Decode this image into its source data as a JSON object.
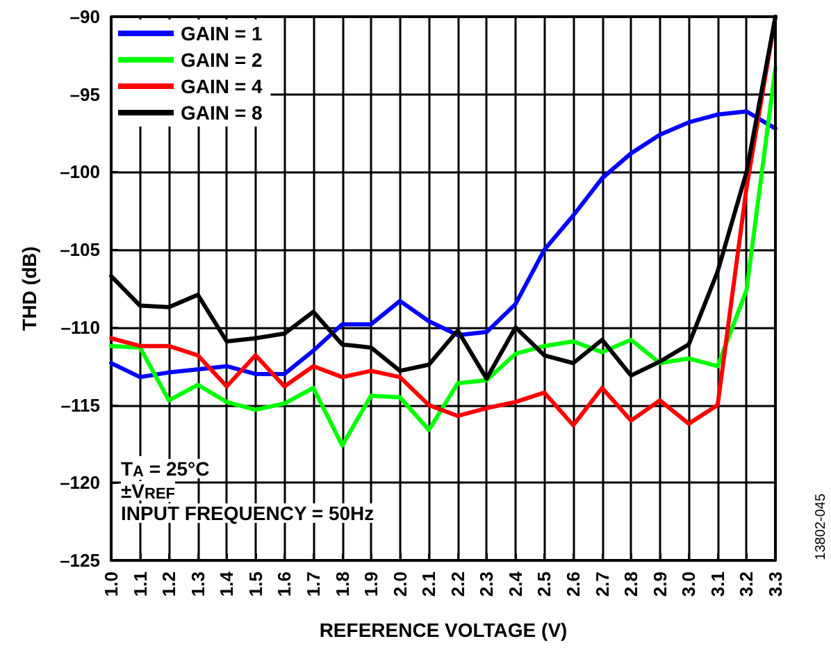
{
  "chart_data": {
    "type": "line",
    "xlabel": "REFERENCE VOLTAGE (V)",
    "ylabel": "THD (dB)",
    "x": [
      1.0,
      1.1,
      1.2,
      1.3,
      1.4,
      1.5,
      1.6,
      1.7,
      1.8,
      1.9,
      2.0,
      2.1,
      2.2,
      2.3,
      2.4,
      2.5,
      2.6,
      2.7,
      2.8,
      2.9,
      3.0,
      3.1,
      3.2,
      3.3
    ],
    "series": [
      {
        "name": "GAIN = 1",
        "color": "#0000ff",
        "values": [
          -112.3,
          -113.2,
          -112.9,
          -112.7,
          -112.5,
          -113.0,
          -113.0,
          -111.5,
          -109.8,
          -109.8,
          -108.3,
          -109.6,
          -110.5,
          -110.3,
          -108.5,
          -105.0,
          -102.8,
          -100.4,
          -98.8,
          -97.6,
          -96.8,
          -96.3,
          -96.1,
          -97.2
        ]
      },
      {
        "name": "GAIN = 2",
        "color": "#00ff00",
        "values": [
          -111.2,
          -111.3,
          -114.7,
          -113.7,
          -114.8,
          -115.3,
          -114.9,
          -113.9,
          -117.6,
          -114.4,
          -114.5,
          -116.6,
          -113.6,
          -113.4,
          -111.7,
          -111.2,
          -110.9,
          -111.6,
          -110.8,
          -112.3,
          -112.0,
          -112.5,
          -107.6,
          -93.3
        ]
      },
      {
        "name": "GAIN = 4",
        "color": "#ff0000",
        "values": [
          -110.7,
          -111.2,
          -111.2,
          -111.8,
          -113.8,
          -111.8,
          -113.8,
          -112.5,
          -113.2,
          -112.8,
          -113.2,
          -115.0,
          -115.7,
          -115.2,
          -114.8,
          -114.2,
          -116.3,
          -113.9,
          -116.0,
          -114.7,
          -116.2,
          -115.0,
          -101.0,
          -90.0
        ]
      },
      {
        "name": "GAIN = 8",
        "color": "#000000",
        "values": [
          -106.7,
          -108.6,
          -108.7,
          -107.9,
          -110.9,
          -110.7,
          -110.4,
          -109.0,
          -111.1,
          -111.3,
          -112.8,
          -112.4,
          -110.2,
          -113.3,
          -110.0,
          -111.8,
          -112.3,
          -110.8,
          -113.1,
          -112.2,
          -111.1,
          -106.4,
          -100.0,
          -90.0
        ]
      }
    ],
    "xlim": [
      1.0,
      3.3
    ],
    "xticks": [
      {
        "value": 1.0,
        "label": "1.0"
      },
      1.1,
      1.2,
      1.3,
      1.4,
      1.5,
      1.6,
      1.7,
      1.8,
      1.9,
      {
        "value": 2.0,
        "label": "2.0"
      },
      2.1,
      2.2,
      2.3,
      2.4,
      2.5,
      2.6,
      2.7,
      2.8,
      2.9,
      {
        "value": 3.0,
        "label": "3.0"
      },
      3.1,
      3.2,
      3.3
    ],
    "ylim": [
      -125,
      -90
    ],
    "yticks": [
      {
        "value": -125,
        "label": "–125"
      },
      {
        "value": -120,
        "label": "–120"
      },
      {
        "value": -115,
        "label": "–115"
      },
      {
        "value": -110,
        "label": "–110"
      },
      {
        "value": -105,
        "label": "–105"
      },
      {
        "value": -100,
        "label": "–100"
      },
      {
        "value": -95,
        "label": "–95"
      },
      {
        "value": -90,
        "label": "–90"
      }
    ],
    "grid": true,
    "legend": "top left",
    "marker": "none",
    "line_style": "solid",
    "annotations": [
      "T$_{A}$ = 25°C",
      "±V$_{REF}$",
      "INPUT FREQUENCY = 50Hz",
      "13802-045"
    ]
  }
}
